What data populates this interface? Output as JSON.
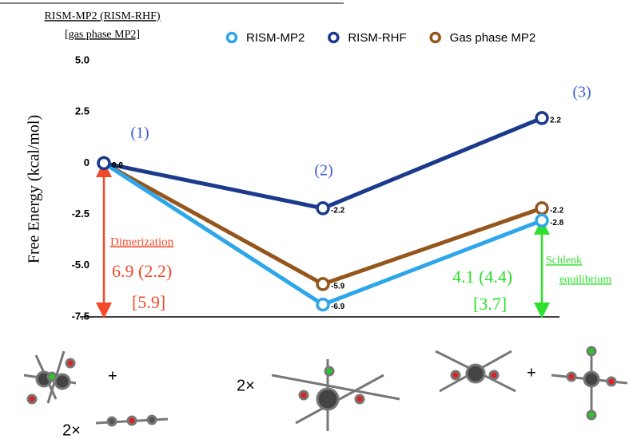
{
  "chart_data": {
    "type": "line",
    "header": [
      "RISM-MP2 (RISM-RHF)",
      "[gas phase MP2]"
    ],
    "y_label": "Free Energy (kcal/mol)",
    "categories": [
      "(1)",
      "(2)",
      "(3)"
    ],
    "series": [
      {
        "name": "RISM-MP2",
        "color": "#2ea6ea",
        "values": [
          0,
          -6.9,
          -2.8
        ],
        "value_labels": [
          "0.0",
          "-6.9",
          "-2.8"
        ]
      },
      {
        "name": "RISM-RHF",
        "color": "#1b3a8c",
        "values": [
          0,
          -2.2,
          2.2
        ],
        "value_labels": [
          "0.0",
          "-2.2",
          "2.2"
        ]
      },
      {
        "name": "Gas phase MP2",
        "color": "#94561c",
        "values": [
          0,
          -5.9,
          -2.2
        ],
        "value_labels": [
          "0.0",
          "-5.9",
          "-2.2"
        ]
      }
    ],
    "ylim": [
      -7.5,
      5
    ],
    "yticks": [
      {
        "value": -7.5,
        "label": "-7.5"
      },
      {
        "value": -5,
        "label": "-5.0"
      },
      -2.5,
      0,
      2.5,
      {
        "value": 5,
        "label": "5.0"
      }
    ],
    "grid": false,
    "legend": "top",
    "annotations": {
      "dimerization": "Dimerization",
      "dim_value": "6.9 (2.2)",
      "dim_gas": "[5.9]",
      "schlenk1": "Schlenk",
      "schlenk2": "equilibrium",
      "sch_value": "4.1 (4.4)",
      "sch_gas": "[3.7]",
      "plus1": "+",
      "two1": "2×",
      "two2": "2×",
      "plus2": "+"
    }
  }
}
